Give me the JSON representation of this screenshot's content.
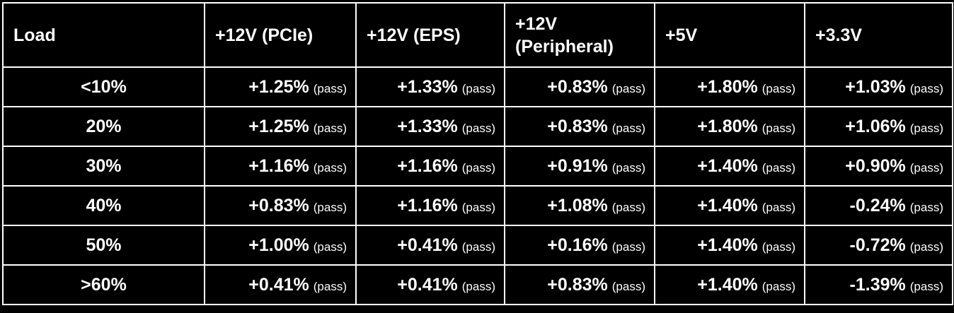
{
  "table": {
    "headers": [
      "Load",
      "+12V (PCIe)",
      "+12V (EPS)",
      "+12V (Peripheral)",
      "+5V",
      "+3.3V"
    ],
    "rows": [
      {
        "load": "<10%",
        "cells": [
          {
            "value": "+1.25%",
            "note": "(pass)"
          },
          {
            "value": "+1.33%",
            "note": "(pass)"
          },
          {
            "value": "+0.83%",
            "note": "(pass)"
          },
          {
            "value": "+1.80%",
            "note": "(pass)"
          },
          {
            "value": "+1.03%",
            "note": "(pass)"
          }
        ]
      },
      {
        "load": "20%",
        "cells": [
          {
            "value": "+1.25%",
            "note": "(pass)"
          },
          {
            "value": "+1.33%",
            "note": "(pass)"
          },
          {
            "value": "+0.83%",
            "note": "(pass)"
          },
          {
            "value": "+1.80%",
            "note": "(pass)"
          },
          {
            "value": "+1.06%",
            "note": "(pass)"
          }
        ]
      },
      {
        "load": "30%",
        "cells": [
          {
            "value": "+1.16%",
            "note": "(pass)"
          },
          {
            "value": "+1.16%",
            "note": "(pass)"
          },
          {
            "value": "+0.91%",
            "note": "(pass)"
          },
          {
            "value": "+1.40%",
            "note": "(pass)"
          },
          {
            "value": "+0.90%",
            "note": "(pass)"
          }
        ]
      },
      {
        "load": "40%",
        "cells": [
          {
            "value": "+0.83%",
            "note": "(pass)"
          },
          {
            "value": "+1.16%",
            "note": "(pass)"
          },
          {
            "value": "+1.08%",
            "note": "(pass)"
          },
          {
            "value": "+1.40%",
            "note": "(pass)"
          },
          {
            "value": "-0.24%",
            "note": "(pass)"
          }
        ]
      },
      {
        "load": "50%",
        "cells": [
          {
            "value": "+1.00%",
            "note": "(pass)"
          },
          {
            "value": "+0.41%",
            "note": "(pass)"
          },
          {
            "value": "+0.16%",
            "note": "(pass)"
          },
          {
            "value": "+1.40%",
            "note": "(pass)"
          },
          {
            "value": "-0.72%",
            "note": "(pass)"
          }
        ]
      },
      {
        "load": ">60%",
        "cells": [
          {
            "value": "+0.41%",
            "note": "(pass)"
          },
          {
            "value": "+0.41%",
            "note": "(pass)"
          },
          {
            "value": "+0.83%",
            "note": "(pass)"
          },
          {
            "value": "+1.40%",
            "note": "(pass)"
          },
          {
            "value": "-1.39%",
            "note": "(pass)"
          }
        ]
      }
    ]
  },
  "colors": {
    "background": "#000000",
    "text": "#ffffff",
    "grid": "#ffffff"
  }
}
